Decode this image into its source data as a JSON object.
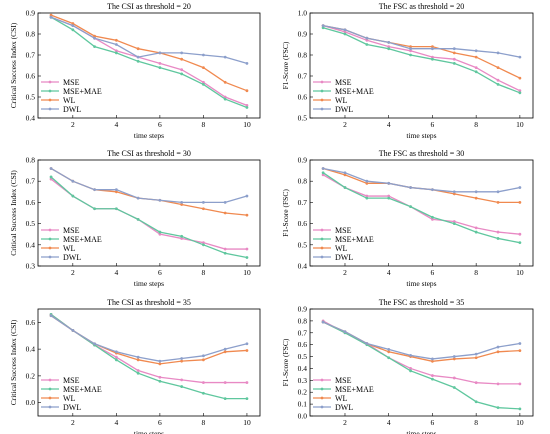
{
  "colors": {
    "MSE": "#e889c4",
    "MSE+MAE": "#5fc79e",
    "WL": "#f0894f",
    "DWL": "#8c9fcb"
  },
  "chart_data": [
    {
      "type": "line",
      "title": "The CSI as threshold = 20",
      "xlabel": "time steps",
      "ylabel": "Critical Success Index (CSI)",
      "x": [
        1,
        2,
        3,
        4,
        5,
        6,
        7,
        8,
        9,
        10
      ],
      "xlim": [
        0.4,
        10.6
      ],
      "xticks": [
        2,
        4,
        6,
        8,
        10
      ],
      "ylim": [
        0.4,
        0.9
      ],
      "yticks": [
        0.4,
        0.5,
        0.6,
        0.7,
        0.8,
        0.9
      ],
      "ytick_labels": [
        "0.4",
        "0.5",
        "0.6",
        "0.7",
        "0.8",
        "0.9"
      ],
      "legend": "bottom-left",
      "series": [
        {
          "name": "MSE",
          "values": [
            0.88,
            0.84,
            0.78,
            0.72,
            0.69,
            0.66,
            0.63,
            0.57,
            0.5,
            0.46
          ]
        },
        {
          "name": "MSE+MAE",
          "values": [
            0.88,
            0.82,
            0.74,
            0.71,
            0.67,
            0.64,
            0.61,
            0.56,
            0.49,
            0.45
          ]
        },
        {
          "name": "WL",
          "values": [
            0.89,
            0.85,
            0.79,
            0.77,
            0.73,
            0.71,
            0.68,
            0.64,
            0.57,
            0.53
          ]
        },
        {
          "name": "DWL",
          "values": [
            0.88,
            0.84,
            0.78,
            0.75,
            0.69,
            0.71,
            0.71,
            0.7,
            0.69,
            0.66
          ]
        }
      ]
    },
    {
      "type": "line",
      "title": "The FSC as threshold = 20",
      "xlabel": "time steps",
      "ylabel": "F1-Score (FSC)",
      "x": [
        1,
        2,
        3,
        4,
        5,
        6,
        7,
        8,
        9,
        10
      ],
      "xlim": [
        0.4,
        10.6
      ],
      "xticks": [
        2,
        4,
        6,
        8,
        10
      ],
      "ylim": [
        0.5,
        1.0
      ],
      "yticks": [
        0.5,
        0.6,
        0.7,
        0.8,
        0.9,
        1.0
      ],
      "ytick_labels": [
        "0.5",
        "0.6",
        "0.7",
        "0.8",
        "0.9",
        "1.0"
      ],
      "legend": "bottom-left",
      "series": [
        {
          "name": "MSE",
          "values": [
            0.94,
            0.91,
            0.87,
            0.84,
            0.82,
            0.79,
            0.78,
            0.74,
            0.68,
            0.63
          ]
        },
        {
          "name": "MSE+MAE",
          "values": [
            0.93,
            0.9,
            0.85,
            0.83,
            0.8,
            0.78,
            0.76,
            0.72,
            0.66,
            0.62
          ]
        },
        {
          "name": "WL",
          "values": [
            0.94,
            0.92,
            0.88,
            0.86,
            0.84,
            0.84,
            0.81,
            0.79,
            0.74,
            0.69
          ]
        },
        {
          "name": "DWL",
          "values": [
            0.94,
            0.92,
            0.88,
            0.86,
            0.83,
            0.83,
            0.83,
            0.82,
            0.81,
            0.79
          ]
        }
      ]
    },
    {
      "type": "line",
      "title": "The CSI as threshold = 30",
      "xlabel": "time steps",
      "ylabel": "Critical Success Index (CSI)",
      "x": [
        1,
        2,
        3,
        4,
        5,
        6,
        7,
        8,
        9,
        10
      ],
      "xlim": [
        0.4,
        10.6
      ],
      "xticks": [
        2,
        4,
        6,
        8,
        10
      ],
      "ylim": [
        0.3,
        0.8
      ],
      "yticks": [
        0.3,
        0.4,
        0.5,
        0.6,
        0.7,
        0.8
      ],
      "ytick_labels": [
        "0.3",
        "0.4",
        "0.5",
        "0.6",
        "0.7",
        "0.8"
      ],
      "legend": "bottom-left",
      "series": [
        {
          "name": "MSE",
          "values": [
            0.71,
            0.63,
            0.57,
            0.57,
            0.52,
            0.45,
            0.43,
            0.41,
            0.38,
            0.38
          ]
        },
        {
          "name": "MSE+MAE",
          "values": [
            0.72,
            0.63,
            0.57,
            0.57,
            0.52,
            0.46,
            0.44,
            0.4,
            0.36,
            0.34
          ]
        },
        {
          "name": "WL",
          "values": [
            0.76,
            0.7,
            0.66,
            0.65,
            0.62,
            0.61,
            0.59,
            0.57,
            0.55,
            0.54
          ]
        },
        {
          "name": "DWL",
          "values": [
            0.76,
            0.7,
            0.66,
            0.66,
            0.62,
            0.61,
            0.6,
            0.6,
            0.6,
            0.63
          ]
        }
      ]
    },
    {
      "type": "line",
      "title": "The FSC as threshold = 30",
      "xlabel": "time steps",
      "ylabel": "F1-Score (FSC)",
      "x": [
        1,
        2,
        3,
        4,
        5,
        6,
        7,
        8,
        9,
        10
      ],
      "xlim": [
        0.4,
        10.6
      ],
      "xticks": [
        2,
        4,
        6,
        8,
        10
      ],
      "ylim": [
        0.4,
        0.9
      ],
      "yticks": [
        0.4,
        0.5,
        0.6,
        0.7,
        0.8,
        0.9
      ],
      "ytick_labels": [
        "0.4",
        "0.5",
        "0.6",
        "0.7",
        "0.8",
        "0.9"
      ],
      "legend": "bottom-left",
      "series": [
        {
          "name": "MSE",
          "values": [
            0.83,
            0.77,
            0.73,
            0.73,
            0.68,
            0.62,
            0.61,
            0.58,
            0.56,
            0.55
          ]
        },
        {
          "name": "MSE+MAE",
          "values": [
            0.84,
            0.77,
            0.72,
            0.72,
            0.68,
            0.63,
            0.6,
            0.56,
            0.53,
            0.51
          ]
        },
        {
          "name": "WL",
          "values": [
            0.86,
            0.83,
            0.79,
            0.79,
            0.77,
            0.76,
            0.74,
            0.72,
            0.7,
            0.7
          ]
        },
        {
          "name": "DWL",
          "values": [
            0.86,
            0.84,
            0.8,
            0.79,
            0.77,
            0.76,
            0.75,
            0.75,
            0.75,
            0.77
          ]
        }
      ]
    },
    {
      "type": "line",
      "title": "The CSI as threshold = 35",
      "xlabel": "time steps",
      "ylabel": "Critical Success Index (CSI)",
      "x": [
        1,
        2,
        3,
        4,
        5,
        6,
        7,
        8,
        9,
        10
      ],
      "xlim": [
        0.4,
        10.6
      ],
      "xticks": [
        2,
        4,
        6,
        8,
        10
      ],
      "ylim": [
        -0.1,
        0.7
      ],
      "yticks": [
        0.0,
        0.2,
        0.4,
        0.6
      ],
      "ytick_labels": [
        "0.0",
        "0.2",
        "0.4",
        "0.6"
      ],
      "legend": "bottom-left",
      "series": [
        {
          "name": "MSE",
          "values": [
            0.66,
            0.54,
            0.43,
            0.34,
            0.24,
            0.19,
            0.17,
            0.15,
            0.15,
            0.15
          ]
        },
        {
          "name": "MSE+MAE",
          "values": [
            0.66,
            0.54,
            0.43,
            0.32,
            0.22,
            0.16,
            0.12,
            0.07,
            0.03,
            0.03
          ]
        },
        {
          "name": "WL",
          "values": [
            0.65,
            0.54,
            0.44,
            0.37,
            0.32,
            0.29,
            0.31,
            0.32,
            0.38,
            0.39
          ]
        },
        {
          "name": "DWL",
          "values": [
            0.65,
            0.54,
            0.44,
            0.38,
            0.34,
            0.31,
            0.33,
            0.35,
            0.4,
            0.44
          ]
        }
      ]
    },
    {
      "type": "line",
      "title": "The FSC as threshold = 35",
      "xlabel": "time steps",
      "ylabel": "F1-Score (FSC)",
      "x": [
        1,
        2,
        3,
        4,
        5,
        6,
        7,
        8,
        9,
        10
      ],
      "xlim": [
        0.4,
        10.6
      ],
      "xticks": [
        2,
        4,
        6,
        8,
        10
      ],
      "ylim": [
        0.0,
        0.9
      ],
      "yticks": [
        0.0,
        0.1,
        0.2,
        0.3,
        0.4,
        0.5,
        0.6,
        0.7,
        0.8,
        0.9
      ],
      "ytick_labels": [
        "0.0",
        "0.1",
        "0.2",
        "0.3",
        "0.4",
        "0.5",
        "0.6",
        "0.7",
        "0.8",
        "0.9"
      ],
      "legend": "bottom-left",
      "series": [
        {
          "name": "MSE",
          "values": [
            0.8,
            0.7,
            0.61,
            0.49,
            0.4,
            0.34,
            0.32,
            0.28,
            0.27,
            0.27
          ]
        },
        {
          "name": "MSE+MAE",
          "values": [
            0.79,
            0.7,
            0.6,
            0.49,
            0.38,
            0.31,
            0.24,
            0.12,
            0.07,
            0.06
          ]
        },
        {
          "name": "WL",
          "values": [
            0.79,
            0.71,
            0.61,
            0.54,
            0.5,
            0.46,
            0.48,
            0.49,
            0.54,
            0.55
          ]
        },
        {
          "name": "DWL",
          "values": [
            0.79,
            0.71,
            0.61,
            0.56,
            0.51,
            0.48,
            0.5,
            0.52,
            0.58,
            0.61
          ]
        }
      ]
    }
  ]
}
